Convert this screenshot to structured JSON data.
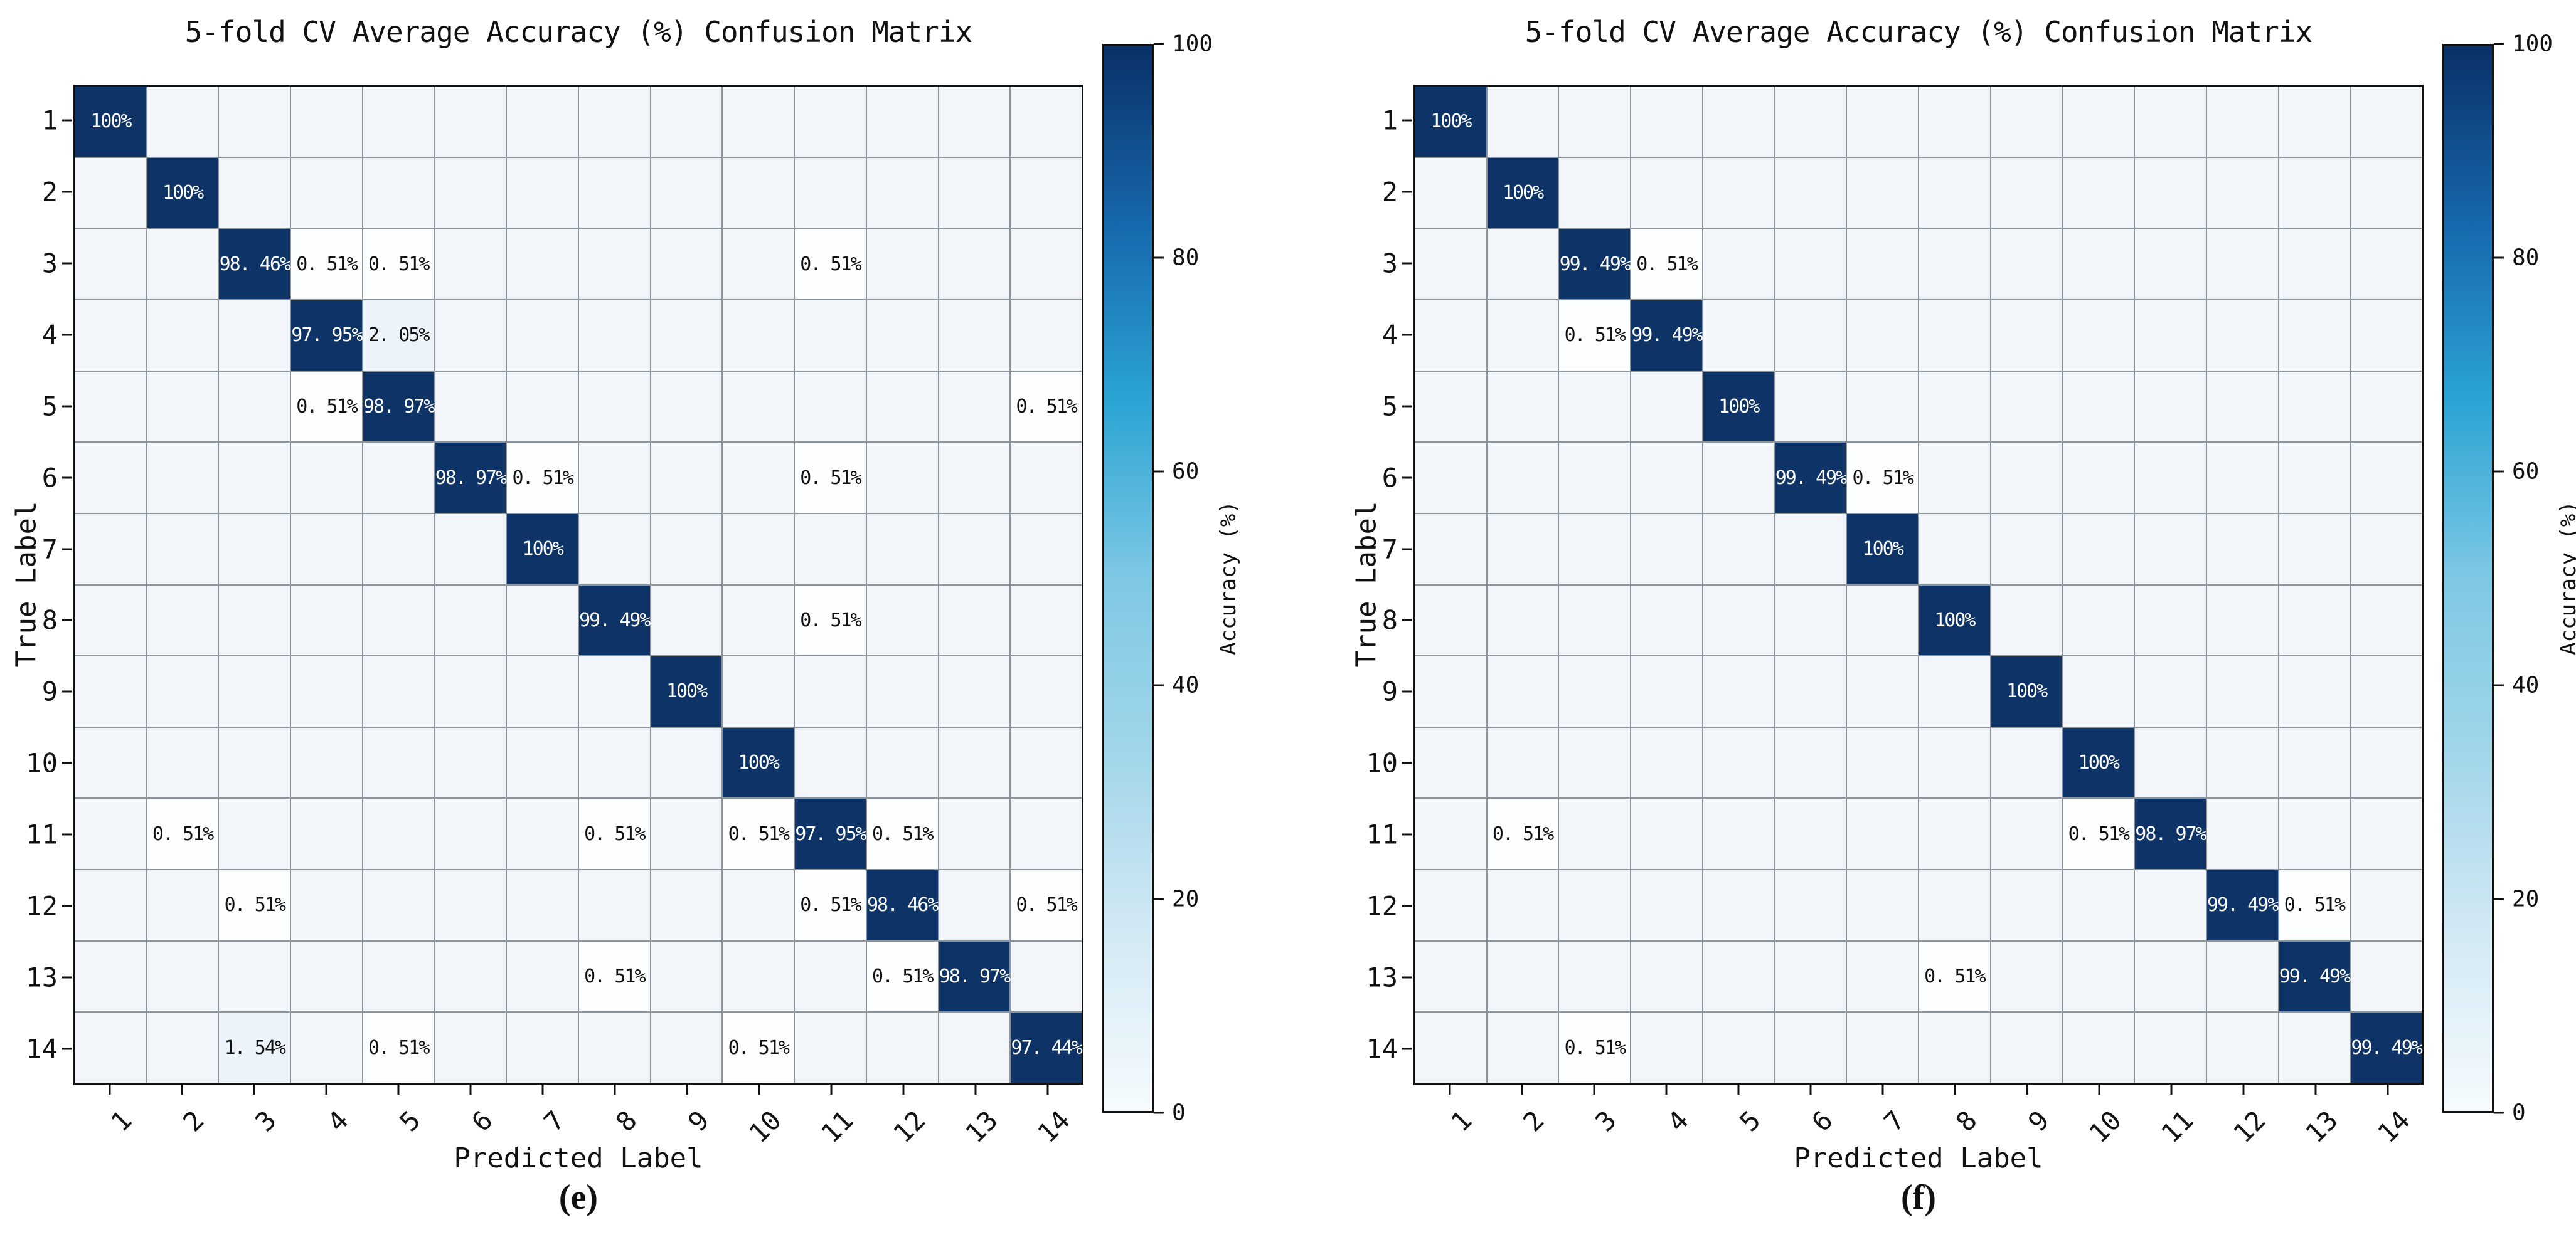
{
  "figure": {
    "background": "#ffffff",
    "diag_color": "#0e3467",
    "cell_base_color": "#f2f6fb",
    "cell_small_value_color": "#fdfeff",
    "cell_medium_value_color": "#edf3fa",
    "gridline_color": "#8b939b",
    "diag_text_color": "#ffffff",
    "offdiag_text_color": "#111111",
    "colorbar_gradient_bottom_to_top": [
      "#f6fbfe",
      "#d2e9f4",
      "#a2d6ea",
      "#7ec8e4",
      "#2ba4d4",
      "#1668ac",
      "#0a3068"
    ]
  },
  "chart_data": [
    {
      "type": "heatmap",
      "title": "5-fold CV Average Accuracy (%) Confusion Matrix",
      "xlabel": "Predicted Label",
      "ylabel": "True Label",
      "caption": "(e)",
      "x_ticklabels": [
        "1",
        "2",
        "3",
        "4",
        "5",
        "6",
        "7",
        "8",
        "9",
        "10",
        "11",
        "12",
        "13",
        "14"
      ],
      "y_ticklabels": [
        "1",
        "2",
        "3",
        "4",
        "5",
        "6",
        "7",
        "8",
        "9",
        "10",
        "11",
        "12",
        "13",
        "14"
      ],
      "value_range": [
        0,
        100
      ],
      "colorbar": {
        "label": "Accuracy (%)",
        "ticks": [
          "100",
          "80",
          "60",
          "40",
          "20",
          "0"
        ]
      },
      "cells": [
        [
          1,
          1,
          100,
          "100%"
        ],
        [
          2,
          2,
          100,
          "100%"
        ],
        [
          3,
          3,
          98.46,
          "98. 46%"
        ],
        [
          3,
          4,
          0.51,
          "0. 51%"
        ],
        [
          3,
          5,
          0.51,
          "0. 51%"
        ],
        [
          3,
          11,
          0.51,
          "0. 51%"
        ],
        [
          4,
          4,
          97.95,
          "97. 95%"
        ],
        [
          4,
          5,
          2.05,
          "2. 05%"
        ],
        [
          5,
          4,
          0.51,
          "0. 51%"
        ],
        [
          5,
          5,
          98.97,
          "98. 97%"
        ],
        [
          5,
          14,
          0.51,
          "0. 51%"
        ],
        [
          6,
          6,
          98.97,
          "98. 97%"
        ],
        [
          6,
          7,
          0.51,
          "0. 51%"
        ],
        [
          6,
          11,
          0.51,
          "0. 51%"
        ],
        [
          7,
          7,
          100,
          "100%"
        ],
        [
          8,
          8,
          99.49,
          "99. 49%"
        ],
        [
          8,
          11,
          0.51,
          "0. 51%"
        ],
        [
          9,
          9,
          100,
          "100%"
        ],
        [
          10,
          10,
          100,
          "100%"
        ],
        [
          11,
          2,
          0.51,
          "0. 51%"
        ],
        [
          11,
          8,
          0.51,
          "0. 51%"
        ],
        [
          11,
          10,
          0.51,
          "0. 51%"
        ],
        [
          11,
          11,
          97.95,
          "97. 95%"
        ],
        [
          11,
          12,
          0.51,
          "0. 51%"
        ],
        [
          12,
          3,
          0.51,
          "0. 51%"
        ],
        [
          12,
          11,
          0.51,
          "0. 51%"
        ],
        [
          12,
          12,
          98.46,
          "98. 46%"
        ],
        [
          12,
          14,
          0.51,
          "0. 51%"
        ],
        [
          13,
          8,
          0.51,
          "0. 51%"
        ],
        [
          13,
          12,
          0.51,
          "0. 51%"
        ],
        [
          13,
          13,
          98.97,
          "98. 97%"
        ],
        [
          14,
          3,
          1.54,
          "1. 54%"
        ],
        [
          14,
          5,
          0.51,
          "0. 51%"
        ],
        [
          14,
          10,
          0.51,
          "0. 51%"
        ],
        [
          14,
          14,
          97.44,
          "97. 44%"
        ]
      ]
    },
    {
      "type": "heatmap",
      "title": "5-fold CV Average Accuracy (%) Confusion Matrix",
      "xlabel": "Predicted Label",
      "ylabel": "True Label",
      "caption": "(f)",
      "x_ticklabels": [
        "1",
        "2",
        "3",
        "4",
        "5",
        "6",
        "7",
        "8",
        "9",
        "10",
        "11",
        "12",
        "13",
        "14"
      ],
      "y_ticklabels": [
        "1",
        "2",
        "3",
        "4",
        "5",
        "6",
        "7",
        "8",
        "9",
        "10",
        "11",
        "12",
        "13",
        "14"
      ],
      "value_range": [
        0,
        100
      ],
      "colorbar": {
        "label": "Accuracy (%)",
        "ticks": [
          "100",
          "80",
          "60",
          "40",
          "20",
          "0"
        ]
      },
      "cells": [
        [
          1,
          1,
          100,
          "100%"
        ],
        [
          2,
          2,
          100,
          "100%"
        ],
        [
          3,
          3,
          99.49,
          "99. 49%"
        ],
        [
          3,
          4,
          0.51,
          "0. 51%"
        ],
        [
          4,
          3,
          0.51,
          "0. 51%"
        ],
        [
          4,
          4,
          99.49,
          "99. 49%"
        ],
        [
          5,
          5,
          100,
          "100%"
        ],
        [
          6,
          6,
          99.49,
          "99. 49%"
        ],
        [
          6,
          7,
          0.51,
          "0. 51%"
        ],
        [
          7,
          7,
          100,
          "100%"
        ],
        [
          8,
          8,
          100,
          "100%"
        ],
        [
          9,
          9,
          100,
          "100%"
        ],
        [
          10,
          10,
          100,
          "100%"
        ],
        [
          11,
          2,
          0.51,
          "0. 51%"
        ],
        [
          11,
          10,
          0.51,
          "0. 51%"
        ],
        [
          11,
          11,
          98.97,
          "98. 97%"
        ],
        [
          12,
          12,
          99.49,
          "99. 49%"
        ],
        [
          12,
          13,
          0.51,
          "0. 51%"
        ],
        [
          13,
          8,
          0.51,
          "0. 51%"
        ],
        [
          13,
          13,
          99.49,
          "99. 49%"
        ],
        [
          14,
          3,
          0.51,
          "0. 51%"
        ],
        [
          14,
          14,
          99.49,
          "99. 49%"
        ]
      ]
    }
  ]
}
